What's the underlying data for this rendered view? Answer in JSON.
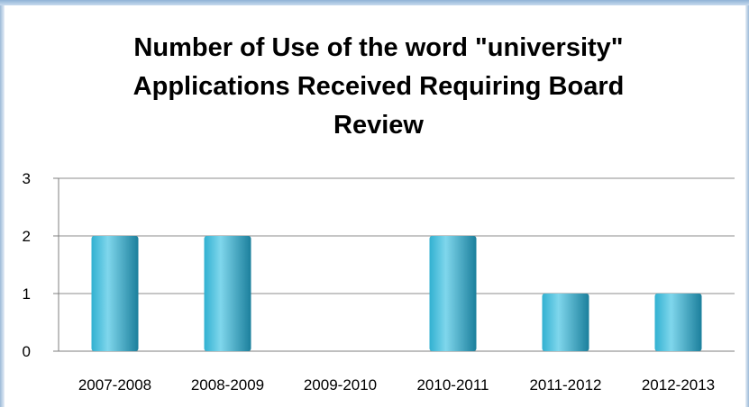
{
  "chart_data": {
    "type": "bar",
    "title_lines": [
      "Number of Use of the word \"university\"",
      "Applications Received Requiring Board",
      "Review"
    ],
    "categories": [
      "2007-2008",
      "2008-2009",
      "2009-2010",
      "2010-2011",
      "2011-2012",
      "2012-2013"
    ],
    "values": [
      2,
      2,
      0,
      2,
      1,
      1
    ],
    "ylim": [
      0,
      3
    ],
    "yticks": [
      "0",
      "1",
      "2",
      "3"
    ],
    "grid": true,
    "legend": "none",
    "colors": {
      "bar_light": "#7fd6ec",
      "bar_mid": "#31b1d1",
      "bar_dark": "#1b7f9c",
      "gridline": "#8c8c8c",
      "axis": "#7f7f7f"
    }
  }
}
